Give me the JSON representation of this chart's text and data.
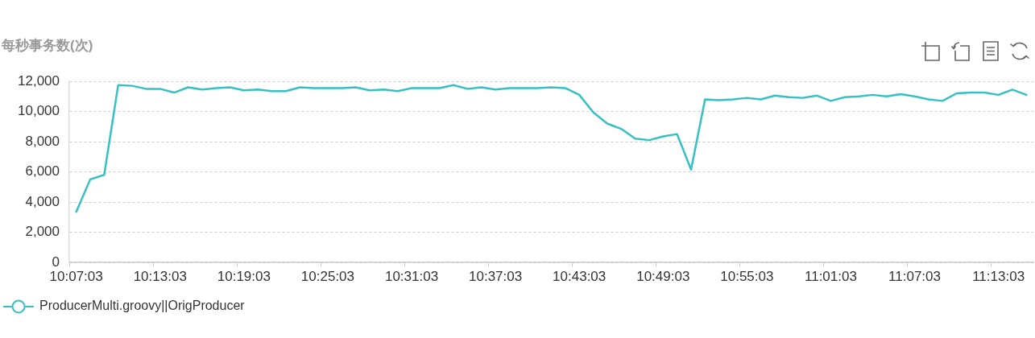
{
  "chart_data": {
    "type": "line",
    "ylabel": "每秒事务数(次)",
    "categories": [
      "10:07:03",
      null,
      null,
      null,
      null,
      null,
      "10:13:03",
      null,
      null,
      null,
      null,
      null,
      "10:19:03",
      null,
      null,
      null,
      null,
      null,
      "10:25:03",
      null,
      null,
      null,
      null,
      null,
      "10:31:03",
      null,
      null,
      null,
      null,
      null,
      "10:37:03",
      null,
      null,
      null,
      null,
      null,
      "10:43:03",
      null,
      null,
      null,
      null,
      null,
      "10:49:03",
      null,
      null,
      null,
      null,
      null,
      "10:55:03",
      null,
      null,
      null,
      null,
      null,
      "11:01:03",
      null,
      null,
      null,
      null,
      null,
      "11:07:03",
      null,
      null,
      null,
      null,
      null,
      "11:13:03",
      null,
      null
    ],
    "series": [
      {
        "name": "ProducerMulti.groovy||OrigProducer",
        "color": "#37c0c4",
        "values": [
          3350,
          5500,
          5800,
          11750,
          11700,
          11500,
          11500,
          11250,
          11600,
          11450,
          11550,
          11600,
          11400,
          11450,
          11350,
          11350,
          11600,
          11550,
          11550,
          11550,
          11600,
          11400,
          11450,
          11350,
          11550,
          11550,
          11550,
          11750,
          11500,
          11600,
          11450,
          11550,
          11550,
          11550,
          11600,
          11550,
          11100,
          9950,
          9200,
          8850,
          8200,
          8100,
          8350,
          8500,
          6150,
          10800,
          10750,
          10800,
          10900,
          10800,
          11050,
          10950,
          10900,
          11050,
          10700,
          10950,
          11000,
          11100,
          11000,
          11150,
          11000,
          10800,
          10700,
          11200,
          11250,
          11250,
          11100,
          11450,
          11100
        ]
      }
    ],
    "ylim": [
      0,
      12000
    ],
    "yticks": [
      0,
      {
        "value": 2000,
        "label": "2,000"
      },
      {
        "value": 4000,
        "label": "4,000"
      },
      {
        "value": 6000,
        "label": "6,000"
      },
      {
        "value": 8000,
        "label": "8,000"
      },
      {
        "value": 10000,
        "label": "10,000"
      },
      {
        "value": 12000,
        "label": "12,000"
      }
    ],
    "grid": "y",
    "legend": "bottom left"
  }
}
